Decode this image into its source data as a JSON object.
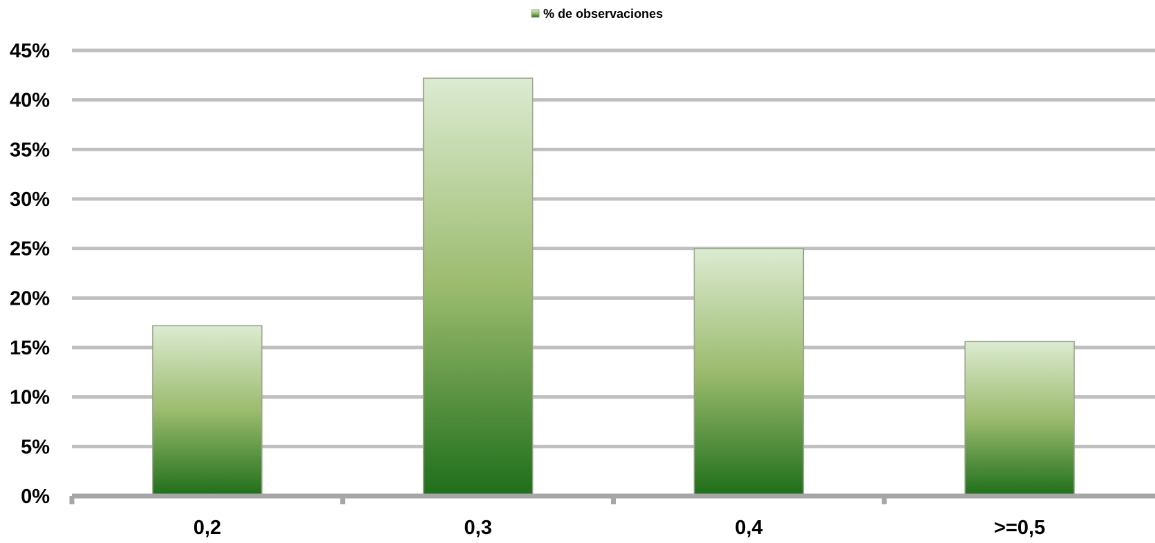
{
  "chart_data": {
    "type": "bar",
    "categories": [
      "0,2",
      "0,3",
      "0,4",
      ">=0,5"
    ],
    "series": [
      {
        "name": "% de observaciones",
        "values": [
          17.2,
          42.2,
          25.0,
          15.6
        ]
      }
    ],
    "ylim": [
      0,
      45
    ],
    "yticks": [
      0,
      5,
      10,
      15,
      20,
      25,
      30,
      35,
      40,
      45
    ],
    "ytick_labels": [
      "0%",
      "5%",
      "10%",
      "15%",
      "20%",
      "25%",
      "30%",
      "35%",
      "40%",
      "45%"
    ],
    "legend": {
      "label": "% de observaciones",
      "position": "top"
    },
    "grid": true,
    "colors": {
      "bar_top": "#dcebd2",
      "bar_mid": "#9bbb6d",
      "bar_bottom": "#1e6e1a",
      "grid": "#bfbfbf",
      "axis": "#a6a6a6",
      "bar_border": "#9aa38e"
    }
  }
}
